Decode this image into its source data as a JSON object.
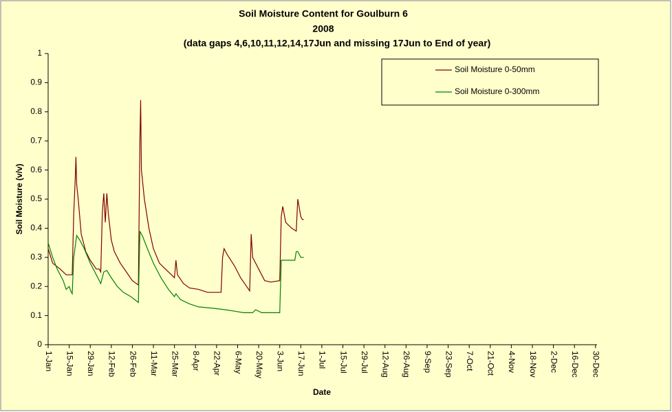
{
  "chart_data": {
    "type": "line",
    "title": "Soil Moisture Content for Goulburn 6",
    "subtitle": "2008",
    "note": "(data gaps 4,6,10,11,12,14,17Jun and missing 17Jun to End of year)",
    "x_label": "Date",
    "y_label": "Soil Moisture (v/v)",
    "xlim": [
      0,
      365
    ],
    "xticks": [
      {
        "value": 0,
        "label": "1-Jan"
      },
      {
        "value": 14,
        "label": "15-Jan"
      },
      {
        "value": 28,
        "label": "29-Jan"
      },
      {
        "value": 42,
        "label": "12-Feb"
      },
      {
        "value": 56,
        "label": "26-Feb"
      },
      {
        "value": 70,
        "label": "11-Mar"
      },
      {
        "value": 84,
        "label": "25-Mar"
      },
      {
        "value": 98,
        "label": "8-Apr"
      },
      {
        "value": 112,
        "label": "22-Apr"
      },
      {
        "value": 126,
        "label": "6-May"
      },
      {
        "value": 140,
        "label": "20-May"
      },
      {
        "value": 154,
        "label": "3-Jun"
      },
      {
        "value": 168,
        "label": "17-Jun"
      },
      {
        "value": 182,
        "label": "1-Jul"
      },
      {
        "value": 196,
        "label": "15-Jul"
      },
      {
        "value": 210,
        "label": "29-Jul"
      },
      {
        "value": 224,
        "label": "12-Aug"
      },
      {
        "value": 238,
        "label": "26-Aug"
      },
      {
        "value": 252,
        "label": "9-Sep"
      },
      {
        "value": 266,
        "label": "23-Sep"
      },
      {
        "value": 280,
        "label": "7-Oct"
      },
      {
        "value": 294,
        "label": "21-Oct"
      },
      {
        "value": 308,
        "label": "4-Nov"
      },
      {
        "value": 322,
        "label": "18-Nov"
      },
      {
        "value": 336,
        "label": "2-Dec"
      },
      {
        "value": 350,
        "label": "16-Dec"
      },
      {
        "value": 364,
        "label": "30-Dec"
      }
    ],
    "ylim": [
      0,
      1
    ],
    "yticks": [
      0,
      0.1,
      0.2,
      0.3,
      0.4,
      0.5,
      0.6,
      0.7,
      0.8,
      0.9,
      1
    ],
    "legend": "top-right",
    "series": [
      {
        "name": "Soil Moisture 0-50mm",
        "color": "#800000",
        "x": [
          0,
          3,
          8,
          12,
          14,
          16,
          17,
          18,
          18.5,
          19,
          20,
          22,
          25,
          28,
          32,
          34,
          35,
          36,
          37,
          38,
          39,
          40,
          42,
          44,
          48,
          52,
          56,
          60,
          61,
          61.5,
          62,
          64,
          67,
          70,
          74,
          78,
          82,
          84,
          85,
          86,
          90,
          94,
          100,
          106,
          112,
          115,
          116,
          117,
          119,
          124,
          128,
          132,
          134,
          135,
          136,
          140,
          144,
          148,
          154,
          155,
          156,
          158,
          162,
          165,
          166,
          167,
          168,
          169,
          170
        ],
        "values": [
          0.33,
          0.28,
          0.26,
          0.24,
          0.24,
          0.24,
          0.45,
          0.57,
          0.645,
          0.55,
          0.5,
          0.38,
          0.32,
          0.29,
          0.26,
          0.26,
          0.25,
          0.45,
          0.52,
          0.42,
          0.52,
          0.45,
          0.36,
          0.32,
          0.28,
          0.25,
          0.22,
          0.205,
          0.7,
          0.84,
          0.6,
          0.5,
          0.4,
          0.33,
          0.28,
          0.26,
          0.24,
          0.23,
          0.29,
          0.24,
          0.21,
          0.195,
          0.19,
          0.18,
          0.18,
          0.18,
          0.3,
          0.33,
          0.31,
          0.27,
          0.23,
          0.2,
          0.185,
          0.38,
          0.3,
          0.26,
          0.22,
          0.215,
          0.22,
          0.44,
          0.475,
          0.42,
          0.4,
          0.39,
          0.5,
          0.47,
          0.44,
          0.43,
          0.43
        ]
      },
      {
        "name": "Soil Moisture 0-300mm",
        "color": "#008000",
        "x": [
          0,
          3,
          6,
          10,
          12,
          14,
          15,
          16,
          17,
          19,
          21,
          24,
          28,
          32,
          35,
          37,
          39,
          42,
          46,
          50,
          55,
          60,
          61,
          63,
          66,
          70,
          75,
          80,
          84,
          85,
          88,
          94,
          100,
          110,
          118,
          124,
          130,
          136,
          138,
          142,
          150,
          154,
          155,
          158,
          164,
          165,
          166,
          168,
          170
        ],
        "values": [
          0.35,
          0.3,
          0.26,
          0.22,
          0.19,
          0.2,
          0.185,
          0.175,
          0.3,
          0.375,
          0.36,
          0.33,
          0.28,
          0.24,
          0.21,
          0.25,
          0.255,
          0.23,
          0.2,
          0.18,
          0.165,
          0.145,
          0.39,
          0.37,
          0.33,
          0.28,
          0.23,
          0.19,
          0.165,
          0.175,
          0.155,
          0.14,
          0.13,
          0.125,
          0.12,
          0.115,
          0.11,
          0.11,
          0.12,
          0.11,
          0.11,
          0.11,
          0.29,
          0.29,
          0.29,
          0.32,
          0.32,
          0.3,
          0.3
        ]
      }
    ]
  }
}
